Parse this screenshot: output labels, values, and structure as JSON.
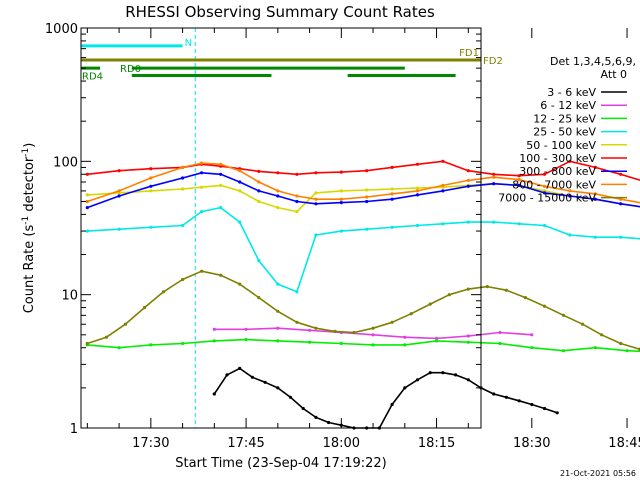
{
  "chart_data": {
    "type": "line",
    "title": "RHESSI Observing Summary Count Rates",
    "xlabel": "Start Time (23-Sep-04 17:19:22)",
    "ylabel": "Count Rate (s⁻¹ detector⁻¹)",
    "y_scale": "log",
    "ylim": [
      1,
      1000
    ],
    "xlim_minutes": [
      -11,
      52
    ],
    "y_ticks": [
      {
        "value": 1,
        "label": "1"
      },
      {
        "value": 10,
        "label": "10"
      },
      {
        "value": 100,
        "label": "100"
      },
      {
        "value": 1000,
        "label": "1000"
      }
    ],
    "x_ticks": [
      {
        "min": 0,
        "label": "17:30"
      },
      {
        "min": 15,
        "label": "17:45"
      },
      {
        "min": 30,
        "label": "18:00"
      },
      {
        "min": 45,
        "label": "18:15"
      },
      {
        "min": 60,
        "label": "18:30"
      },
      {
        "min": 75,
        "label": "18:45"
      }
    ],
    "legend_header": [
      "Det 1,3,4,5,6,9,",
      "Att 0"
    ],
    "legend_placement": "right",
    "series": [
      {
        "name": "3 - 6 keV",
        "color": "#000000",
        "x": [
          10,
          12,
          14,
          16,
          18,
          20,
          22,
          24,
          26,
          28,
          30,
          32,
          34,
          36,
          38,
          40,
          42,
          44,
          46,
          48,
          50,
          52,
          54,
          56,
          58,
          60,
          62,
          64
        ],
        "y": [
          1.8,
          2.5,
          2.8,
          2.4,
          2.2,
          2,
          1.7,
          1.4,
          1.2,
          1.1,
          1.05,
          1.0,
          1.0,
          1.0,
          1.5,
          2.0,
          2.3,
          2.6,
          2.6,
          2.5,
          2.3,
          2.0,
          1.8,
          1.7,
          1.6,
          1.5,
          1.4,
          1.3
        ]
      },
      {
        "name": "6 - 12 keV",
        "color": "#e040e0",
        "x": [
          10,
          15,
          20,
          25,
          30,
          35,
          40,
          45,
          50,
          55,
          60
        ],
        "y": [
          5.5,
          5.5,
          5.6,
          5.4,
          5.2,
          5.0,
          4.8,
          4.7,
          4.9,
          5.2,
          5.0
        ]
      },
      {
        "name": "12 - 25 keV",
        "color": "#00ee00",
        "x": [
          -10,
          -5,
          0,
          5,
          10,
          15,
          20,
          25,
          30,
          35,
          40,
          45,
          50,
          55,
          60,
          65,
          70,
          75,
          80
        ],
        "y": [
          4.2,
          4.0,
          4.2,
          4.3,
          4.5,
          4.6,
          4.5,
          4.4,
          4.3,
          4.2,
          4.2,
          4.5,
          4.4,
          4.3,
          4.0,
          3.8,
          4.0,
          3.8,
          3.7
        ]
      },
      {
        "name": "25 - 50 keV",
        "color": "#00e8e8",
        "x": [
          -10,
          -5,
          0,
          5,
          8,
          11,
          14,
          17,
          20,
          23,
          26,
          30,
          34,
          38,
          42,
          46,
          50,
          54,
          58,
          62,
          66,
          70,
          74,
          78
        ],
        "y": [
          30,
          31,
          32,
          33,
          42,
          45,
          35,
          18,
          12,
          10.5,
          28,
          30,
          31,
          32,
          33,
          34,
          35,
          35,
          34,
          33,
          28,
          27,
          27,
          26
        ]
      },
      {
        "name": "50 - 100 keV",
        "color": "#d8d800",
        "x": [
          -10,
          -5,
          0,
          5,
          8,
          11,
          14,
          17,
          20,
          23,
          26,
          30,
          34,
          38,
          42,
          46,
          50,
          54,
          58,
          62,
          66,
          70,
          74,
          78
        ],
        "y": [
          56,
          58,
          60,
          62,
          64,
          66,
          60,
          50,
          45,
          42,
          58,
          60,
          61,
          62,
          63,
          64,
          66,
          68,
          66,
          60,
          55,
          52,
          48,
          45
        ]
      },
      {
        "name": "100 - 300 keV",
        "color": "#ff0000",
        "x": [
          -10,
          -5,
          0,
          5,
          8,
          11,
          14,
          17,
          20,
          23,
          26,
          30,
          34,
          38,
          42,
          46,
          50,
          54,
          58,
          62,
          66,
          70,
          74,
          78
        ],
        "y": [
          80,
          85,
          88,
          90,
          95,
          92,
          88,
          84,
          82,
          80,
          82,
          83,
          85,
          90,
          95,
          100,
          85,
          80,
          78,
          80,
          100,
          90,
          80,
          70
        ]
      },
      {
        "name": "300 - 800 keV",
        "color": "#0000ff",
        "x": [
          -10,
          -5,
          0,
          5,
          8,
          11,
          14,
          17,
          20,
          23,
          26,
          30,
          34,
          38,
          42,
          46,
          50,
          54,
          58,
          62,
          66,
          70,
          74,
          78
        ],
        "y": [
          45,
          55,
          65,
          75,
          82,
          80,
          70,
          60,
          55,
          50,
          48,
          49,
          50,
          52,
          56,
          60,
          65,
          68,
          66,
          58,
          55,
          52,
          48,
          45
        ]
      },
      {
        "name": "800 - 7000 keV",
        "color": "#ff8000",
        "x": [
          -10,
          -5,
          0,
          5,
          8,
          11,
          14,
          17,
          20,
          23,
          26,
          30,
          34,
          38,
          42,
          46,
          50,
          54,
          58,
          62,
          66,
          70,
          74,
          78
        ],
        "y": [
          50,
          60,
          75,
          90,
          97,
          95,
          85,
          70,
          60,
          55,
          52,
          52,
          54,
          57,
          60,
          66,
          72,
          76,
          73,
          65,
          60,
          57,
          52,
          48
        ]
      },
      {
        "name": "7000 - 15000 keV",
        "color": "#808000",
        "x": [
          -10,
          -7,
          -4,
          -1,
          2,
          5,
          8,
          11,
          14,
          17,
          20,
          23,
          26,
          29,
          32,
          35,
          38,
          41,
          44,
          47,
          50,
          53,
          56,
          59,
          62,
          65,
          68,
          71,
          74,
          77,
          80
        ],
        "y": [
          4.3,
          4.8,
          6,
          8,
          10.5,
          13,
          15,
          14,
          12,
          9.5,
          7.5,
          6.2,
          5.6,
          5.3,
          5.2,
          5.6,
          6.2,
          7.2,
          8.5,
          10,
          11,
          11.5,
          10.8,
          9.5,
          8.2,
          7,
          6,
          5,
          4.3,
          3.9,
          3.6
        ]
      }
    ],
    "flags": [
      {
        "label": "N",
        "color": "#00e8e8",
        "y": 735,
        "x": [
          -11,
          5
        ]
      },
      {
        "label": "",
        "color": "#00e8e8",
        "y": 735,
        "x": [
          78,
          95
        ]
      },
      {
        "label": "FD1",
        "color": "#808000",
        "y": 660,
        "x": [
          86,
          95
        ]
      },
      {
        "label": "FD2",
        "color": "#808000",
        "y": 575,
        "x": [
          -11,
          85
        ]
      },
      {
        "label": "RD0",
        "color": "#008800",
        "y": 500,
        "x": [
          -11,
          -8
        ]
      },
      {
        "label": "",
        "color": "#008800",
        "y": 500,
        "x": [
          -3,
          40
        ]
      },
      {
        "label": "",
        "color": "#008800",
        "y": 500,
        "x": [
          67,
          95
        ]
      },
      {
        "label": "RD4",
        "color": "#008800",
        "y": 440,
        "x": [
          -3,
          19
        ]
      },
      {
        "label": "",
        "color": "#008800",
        "y": 440,
        "x": [
          31,
          48
        ]
      },
      {
        "label": "",
        "color": "#008800",
        "y": 440,
        "x": [
          53,
          67
        ]
      }
    ],
    "vlines": [
      {
        "x": -11,
        "color": "#00e8e8",
        "style": "solid"
      },
      {
        "x": 7,
        "color": "#00e8e8",
        "style": "dashed"
      },
      {
        "x": 78,
        "color": "#00e8e8",
        "style": "solid"
      },
      {
        "x": 95,
        "color": "#00e8e8",
        "style": "dashed"
      }
    ]
  },
  "footer": {
    "timestamp": "21-Oct-2021 05:56"
  }
}
